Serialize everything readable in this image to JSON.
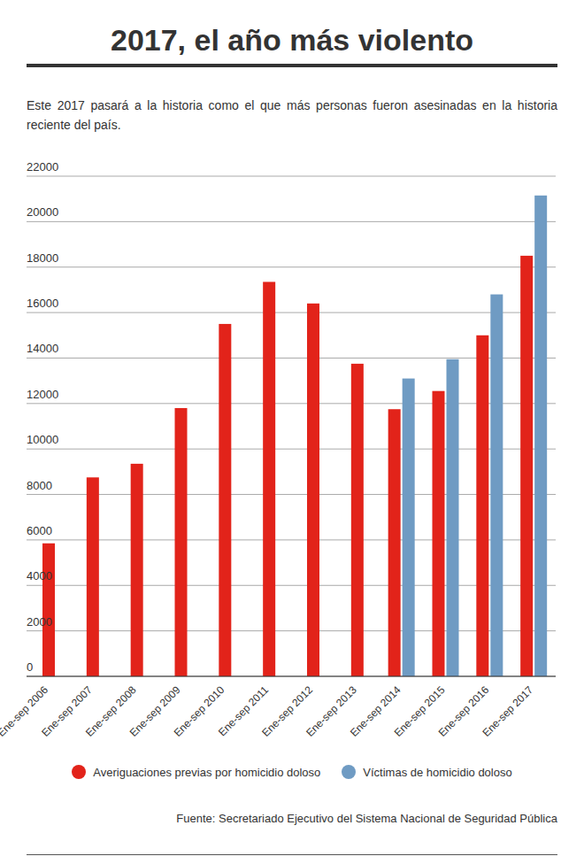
{
  "chart_data": {
    "type": "bar",
    "title": "2017, el año más violento",
    "subtitle": "Este 2017 pasará a la historia como el que más personas fueron asesinadas en la historia reciente del país.",
    "source": "Fuente: Secretariado Ejecutivo del Sistema Nacional de Seguridad Pública",
    "categories": [
      "Ene-sep 2006",
      "Ene-sep 2007",
      "Ene-sep 2008",
      "Ene-sep 2009",
      "Ene-sep 2010",
      "Ene-sep 2011",
      "Ene-sep 2012",
      "Ene-sep 2013",
      "Ene-sep 2014",
      "Ene-sep 2015",
      "Ene-sep 2016",
      "Ene-sep 2017"
    ],
    "series": [
      {
        "name": "Averiguaciones previas por homicidio doloso",
        "color": "#e2231a",
        "values": [
          5850,
          8750,
          9350,
          11800,
          15500,
          17350,
          16400,
          13750,
          11750,
          12550,
          15000,
          18500
        ]
      },
      {
        "name": "Víctimas de homicidio doloso",
        "color": "#6f9bc3",
        "values": [
          null,
          null,
          null,
          null,
          null,
          null,
          null,
          null,
          13100,
          13950,
          16800,
          21150
        ]
      }
    ],
    "ylim": [
      0,
      22000
    ],
    "yticks": [
      0,
      2000,
      4000,
      6000,
      8000,
      10000,
      12000,
      14000,
      16000,
      18000,
      20000,
      22000
    ],
    "grid": true,
    "legend": "bottom"
  }
}
